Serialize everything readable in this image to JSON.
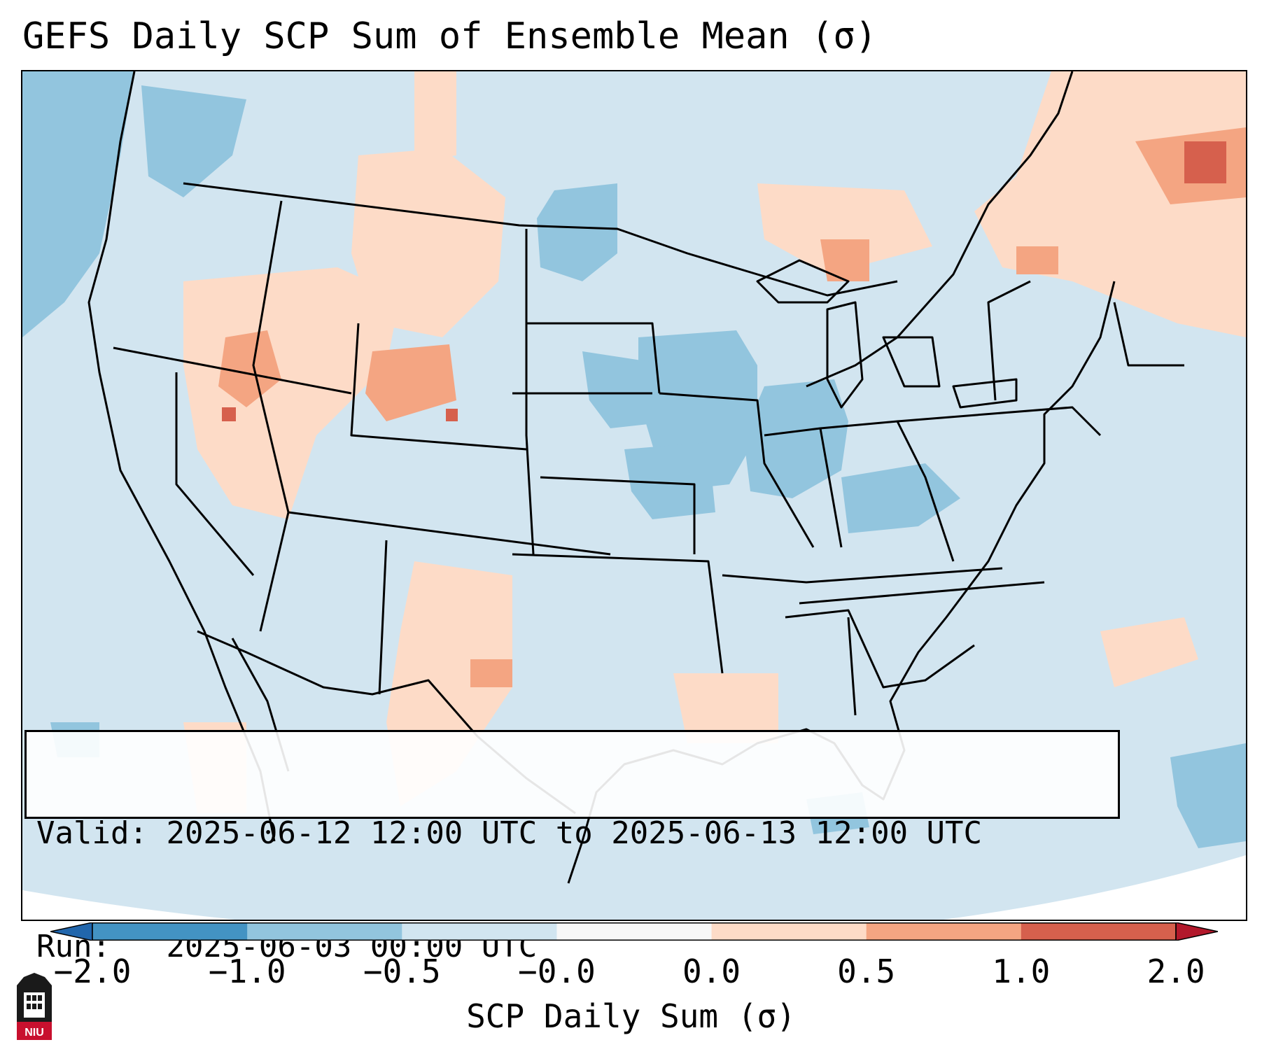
{
  "title": "GEFS Daily SCP Sum of Ensemble Mean (σ)",
  "info": {
    "valid_label": "Valid:",
    "valid_value": "2025-06-12 12:00 UTC to 2025-06-13 12:00 UTC",
    "run_label": "Run:",
    "run_value": "2025-06-03 00:00 UTC"
  },
  "colorbar": {
    "label": "SCP Daily Sum (σ)",
    "bounds": [
      -2.0,
      -1.0,
      -0.5,
      -0.0,
      0.0,
      0.5,
      1.0,
      2.0
    ],
    "tick_labels": [
      "−2.0",
      "−1.0",
      "−0.5",
      "−0.0",
      "0.0",
      "0.5",
      "1.0",
      "2.0"
    ],
    "colors": [
      "#4393c3",
      "#92c5de",
      "#d1e5f0",
      "#f7f7f7",
      "#fddbc7",
      "#f4a582",
      "#d6604d"
    ],
    "under_color": "#2166ac",
    "over_color": "#b2182b"
  },
  "map": {
    "background_color": "#d1e5f0",
    "outside_color": "#ffffff",
    "extent": "CONUS"
  },
  "logo": {
    "text": "NIU",
    "name": "niu-logo"
  }
}
